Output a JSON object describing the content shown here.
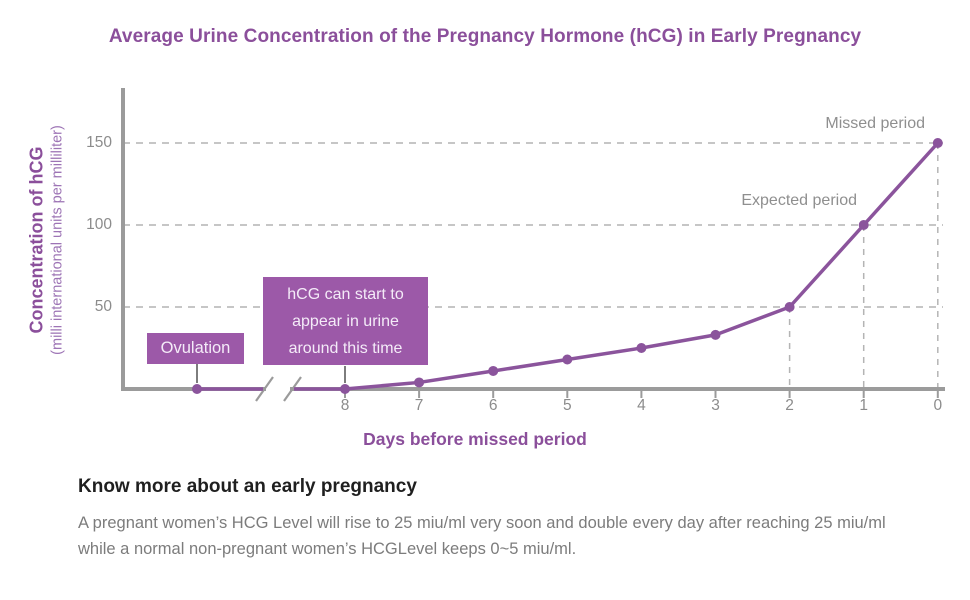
{
  "chart_data": {
    "type": "line",
    "title": "Average Urine Concentration of the Pregnancy Hormone (hCG) in Early Pregnancy",
    "xlabel": "Days before missed period",
    "ylabel": "Concentration of hCG",
    "ylabel_sub": "(milli international units per milliliter)",
    "x": [
      8,
      7,
      6,
      5,
      4,
      3,
      2,
      1,
      0
    ],
    "values": [
      0,
      4,
      11,
      18,
      25,
      33,
      50,
      100,
      150
    ],
    "yticks": [
      50,
      100,
      150
    ],
    "ylim": [
      0,
      185
    ],
    "x_axis_reversed_countdown": true,
    "grid": "horizontal dashed gridlines at yticks",
    "legend": "none",
    "axis_break_before_day": 8,
    "pre_break_point": {
      "label": "Ovulation",
      "value": 0
    },
    "dashed_drops_at_days": [
      2,
      1,
      0
    ],
    "annotations": [
      {
        "text": "Missed period",
        "day": 0,
        "value": 150
      },
      {
        "text": "Expected period",
        "day": 1,
        "value": 100
      }
    ],
    "callout": {
      "text": "hCG can start to\nappear in urine\naround this time",
      "points_to_day": 8
    },
    "colors": {
      "line": "#8b549c",
      "marker": "#8b549c",
      "box_fill": "#9c59a8",
      "box_text": "#f4ebf8",
      "axis": "#9b9b9b",
      "grid": "#b4b4b4",
      "tick_text": "#8c8c8c",
      "annotation_text": "#8f8f8f",
      "title_text": "#8b4f9b",
      "connector": "#7d7d7d"
    }
  },
  "footer": {
    "heading": "Know more about an early pregnancy",
    "body": "A pregnant women’s HCG Level will rise to 25 miu/ml very soon and double every day after reaching 25 miu/ml while a normal non-pregnant women’s HCGLevel keeps 0~5 miu/ml."
  }
}
